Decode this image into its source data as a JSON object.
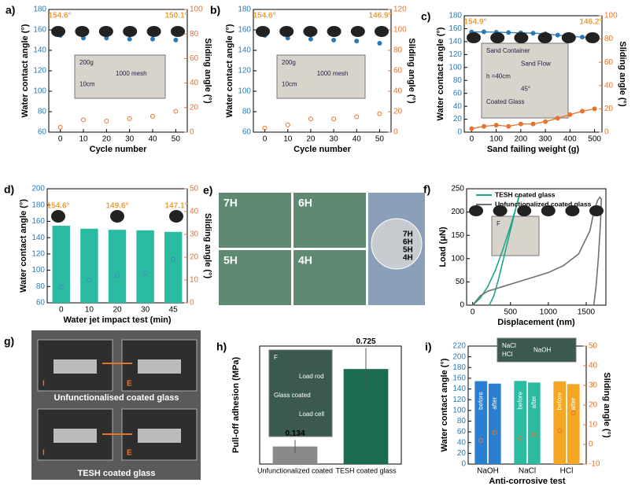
{
  "chart_data": [
    {
      "type": "scatter",
      "panel": "a)",
      "x": [
        0,
        10,
        20,
        30,
        40,
        50
      ],
      "xlim": [
        -5,
        55
      ],
      "xticks": [
        0,
        10,
        20,
        30,
        40,
        50
      ],
      "ylim": [
        60,
        180
      ],
      "yticks": [
        60,
        80,
        100,
        120,
        140,
        160,
        180
      ],
      "y2lim": [
        0,
        100
      ],
      "y2ticks": [
        0,
        20,
        40,
        60,
        80,
        100
      ],
      "xlabel": "Cycle number",
      "ylabel": "Water contact angle (°)",
      "y2label": "Sliding angle (°)",
      "annotations": [
        "154.6°",
        "150.1°"
      ],
      "insets": [
        "200g",
        "1000 mesh",
        "10cm"
      ],
      "series": [
        {
          "mark": "point",
          "color": "#2a7ab8",
          "values": [
            154.6,
            152,
            152,
            151,
            151,
            150.1
          ]
        },
        {
          "mark": "point",
          "axis": "y2",
          "color": "#e8732c",
          "values": [
            4,
            10,
            9,
            11,
            13,
            17
          ]
        }
      ]
    },
    {
      "type": "scatter",
      "panel": "b)",
      "x": [
        0,
        10,
        20,
        30,
        40,
        50
      ],
      "xlim": [
        -5,
        55
      ],
      "xticks": [
        0,
        10,
        20,
        30,
        40,
        50
      ],
      "ylim": [
        60,
        180
      ],
      "yticks": [
        60,
        80,
        100,
        120,
        140,
        160,
        180
      ],
      "y2lim": [
        0,
        120
      ],
      "y2ticks": [
        0,
        20,
        40,
        60,
        80,
        100,
        120
      ],
      "xlabel": "Cycle number",
      "ylabel": "Water contact angle (°)",
      "y2label": "Sliding angle (°)",
      "annotations": [
        "154.6°",
        "146.9°"
      ],
      "insets": [
        "200g",
        "1000 mesh",
        "10cm"
      ],
      "series": [
        {
          "mark": "point",
          "color": "#2a7ab8",
          "values": [
            154.6,
            152,
            151,
            150,
            149,
            146.9
          ]
        },
        {
          "mark": "point",
          "axis": "y2",
          "color": "#e8732c",
          "values": [
            4,
            7,
            13,
            13,
            15,
            18
          ]
        }
      ]
    },
    {
      "type": "line",
      "panel": "c)",
      "x": [
        0,
        50,
        100,
        150,
        200,
        250,
        300,
        350,
        400,
        450,
        500
      ],
      "xlim": [
        -30,
        530
      ],
      "xticks": [
        0,
        100,
        200,
        300,
        400,
        500
      ],
      "ylim": [
        0,
        180
      ],
      "yticks": [
        0,
        20,
        40,
        60,
        80,
        100,
        120,
        140,
        160,
        180
      ],
      "y2lim": [
        0,
        100
      ],
      "y2ticks": [
        0,
        20,
        40,
        60,
        80,
        100
      ],
      "xlabel": "Sand failing weight (g)",
      "ylabel": "Water contact angle (°)",
      "y2label": "Sliding angle (°)",
      "annotations": [
        "154.9°",
        "146.2°"
      ],
      "insets": [
        "Sand Container",
        "Sand Flow",
        "h =40cm",
        "45°",
        "Coated Glass"
      ],
      "series": [
        {
          "mark": "line",
          "color": "#2a7ab8",
          "values": [
            154.9,
            155,
            154.5,
            154,
            153.5,
            153,
            152,
            150,
            148,
            147,
            146.2
          ]
        },
        {
          "mark": "line",
          "axis": "y2",
          "color": "#e8732c",
          "values": [
            3,
            5,
            6,
            5,
            7,
            7,
            9,
            12,
            15,
            18,
            20
          ]
        }
      ]
    },
    {
      "type": "bar",
      "panel": "d)",
      "categories": [
        "0",
        "10",
        "20",
        "30",
        "45"
      ],
      "ylim": [
        60,
        200
      ],
      "yticks": [
        60,
        80,
        100,
        120,
        140,
        160,
        180,
        200
      ],
      "y2lim": [
        0,
        50
      ],
      "y2ticks": [
        0,
        10,
        20,
        30,
        40,
        50
      ],
      "xlabel": "Water jet impact test (min)",
      "ylabel": "Water contact angle (°)",
      "y2label": "Sliding angle (°)",
      "annotations": [
        "154.6°",
        "149.6°",
        "147.1°"
      ],
      "colors": [
        "#2bbba0",
        "#2bbba0",
        "#2bbba0",
        "#2bbba0",
        "#2bbba0"
      ],
      "series": [
        {
          "mark": "bar",
          "values": [
            154.6,
            151,
            149.6,
            149,
            147.1
          ]
        },
        {
          "mark": "point",
          "axis": "y2",
          "color": "#3c8dc8",
          "values": [
            7,
            10,
            12,
            13,
            19
          ]
        }
      ]
    },
    {
      "type": "line",
      "panel": "f)",
      "xlim": [
        -80,
        1760
      ],
      "xticks": [
        0,
        500,
        1000,
        1500
      ],
      "ylim": [
        0,
        250
      ],
      "yticks": [
        0,
        50,
        100,
        150,
        200,
        250
      ],
      "xlabel": "Displacement (nm)",
      "ylabel": "Load (μN)",
      "insets": [
        "F"
      ],
      "series": [
        {
          "name": "TESH coated glass",
          "mark": "path",
          "color": "#1fa58a",
          "x": [
            0,
            100,
            200,
            300,
            400,
            500,
            600,
            620,
            580,
            520,
            460,
            400,
            340,
            280,
            220
          ],
          "values": [
            0,
            15,
            40,
            75,
            120,
            170,
            225,
            240,
            215,
            175,
            135,
            95,
            55,
            20,
            0
          ]
        },
        {
          "name": "Unfunctionalized coated glass",
          "mark": "path",
          "color": "#707070",
          "x": [
            0,
            100,
            200,
            400,
            600,
            800,
            1000,
            1200,
            1400,
            1550,
            1600,
            1650,
            1680,
            1700,
            1690,
            1660,
            1630,
            1600
          ],
          "values": [
            0,
            20,
            30,
            40,
            50,
            60,
            70,
            85,
            110,
            160,
            200,
            225,
            232,
            228,
            180,
            100,
            40,
            0
          ]
        }
      ]
    },
    {
      "type": "bar",
      "panel": "h)",
      "categories": [
        "Unfunctionalized coated",
        "TESH coated glass"
      ],
      "ylim": [
        0,
        0.9
      ],
      "ylabel": "Pull-off adhesion (MPa)",
      "colors": [
        "#8a8a8a",
        "#1a6b4f"
      ],
      "value_text": true,
      "insets": [
        "F",
        "Load rod",
        "Glass coated",
        "Load cell"
      ],
      "series": [
        {
          "mark": "bar",
          "values": [
            0.134,
            0.725
          ],
          "errors": [
            0.05,
            0.16
          ]
        }
      ]
    },
    {
      "type": "bar",
      "panel": "i)",
      "categories": [
        "NaOH",
        "NaCl",
        "HCl"
      ],
      "ylim": [
        0,
        220
      ],
      "yticks": [
        0,
        20,
        40,
        60,
        80,
        100,
        120,
        140,
        160,
        180,
        200,
        220
      ],
      "y2lim": [
        -10,
        50
      ],
      "y2ticks": [
        -10,
        0,
        10,
        20,
        30,
        40,
        50
      ],
      "xlabel": "Anti-corrosive test",
      "ylabel": "Water contact angle (°)",
      "y2label": "Sliding angle (°)",
      "colors": [
        "#2b7fd0",
        "#2bbba0",
        "#f5a623"
      ],
      "insets": [
        "NaCl",
        "NaOH",
        "HCl"
      ],
      "series": [
        {
          "name": "before",
          "mark": "bar",
          "values": [
            154.6,
            155,
            154
          ]
        },
        {
          "name": "after",
          "mark": "bar",
          "values": [
            150,
            152,
            149
          ]
        },
        {
          "mark": "point",
          "axis": "y2",
          "group": 0,
          "color": "#e8732c",
          "values": [
            2,
            3,
            7
          ]
        },
        {
          "mark": "point",
          "axis": "y2",
          "group": 1,
          "color": "#e8732c",
          "values": [
            6,
            5,
            16
          ]
        }
      ]
    }
  ],
  "photos": [
    {
      "panel": "e)",
      "tiles": [
        "7H",
        "6H",
        "5H",
        "4H"
      ],
      "inset": [
        "7H",
        "6H",
        "5H",
        "4H"
      ]
    },
    {
      "panel": "g)",
      "tiles": [
        "I",
        "E",
        "I",
        "E"
      ],
      "captions": [
        "Unfunctionalised coated glass",
        "TESH coated glass"
      ]
    }
  ]
}
